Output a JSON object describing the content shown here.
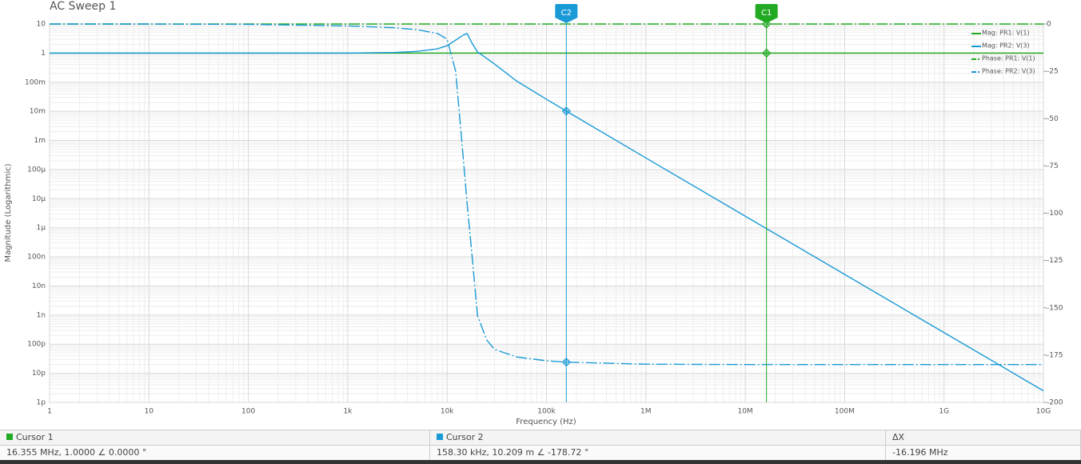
{
  "chart_data": {
    "type": "line",
    "title": "AC Sweep 1",
    "x_label": "Frequency (Hz)",
    "y_label": "Magnitude (Logarithmic)",
    "log_x": true,
    "log_y": true,
    "grid": true,
    "legend": "upper right",
    "xlim": [
      1,
      10000000000
    ],
    "xticks": [
      1,
      10,
      100,
      {
        "value": 1000,
        "label": "1k"
      },
      {
        "value": 10000,
        "label": "10k"
      },
      {
        "value": 100000,
        "label": "100k"
      },
      {
        "value": 1000000,
        "label": "1M"
      },
      {
        "value": 10000000,
        "label": "10M"
      },
      {
        "value": 100000000,
        "label": "100M"
      },
      {
        "value": 1000000000,
        "label": "1G"
      },
      {
        "value": 10000000000,
        "label": "10G"
      }
    ],
    "ylim": [
      1e-12,
      10
    ],
    "yticks": [
      {
        "value": 1e-12,
        "label": "1p"
      },
      {
        "value": 1e-11,
        "label": "10p"
      },
      {
        "value": 1e-10,
        "label": "100p"
      },
      {
        "value": 1e-09,
        "label": "1n"
      },
      {
        "value": 1e-08,
        "label": "10n"
      },
      {
        "value": 1e-07,
        "label": "100n"
      },
      {
        "value": 1e-06,
        "label": "1µ"
      },
      {
        "value": 1e-05,
        "label": "10µ"
      },
      {
        "value": 0.0001,
        "label": "100µ"
      },
      {
        "value": 0.001,
        "label": "1m"
      },
      {
        "value": 0.01,
        "label": "10m"
      },
      {
        "value": 0.1,
        "label": "100m"
      },
      1,
      10
    ],
    "y2lim": [
      -200,
      0
    ],
    "y2ticks": [
      0,
      -25,
      -50,
      -75,
      -100,
      -125,
      -150,
      -175,
      -200
    ],
    "x": [
      1,
      10,
      100,
      1000,
      3000,
      5000,
      8000,
      10000,
      12200,
      14600,
      15900,
      17800,
      20200,
      25000,
      30000,
      50000,
      100000,
      158300,
      1000000,
      10000000,
      100000000,
      1000000000,
      10000000000
    ],
    "series": [
      {
        "name": "Mag: PR1: V(1)",
        "color": "#22aa22",
        "values": [
          1,
          1,
          1,
          1,
          1,
          1,
          1,
          1,
          1,
          1,
          1,
          1,
          1,
          1,
          1,
          1,
          1,
          1,
          1,
          1,
          1,
          1,
          1
        ]
      },
      {
        "name": "Mag: PR2: V(3)",
        "color": "#1a9ad6",
        "values": [
          1,
          1,
          1,
          1,
          1.05,
          1.15,
          1.4,
          1.8,
          2.8,
          4.2,
          4.7,
          2.2,
          1.1,
          0.66,
          0.42,
          0.11,
          0.026,
          0.0102,
          0.00025,
          2.5e-06,
          2.5e-08,
          2.5e-10,
          2.5e-12
        ]
      },
      {
        "name": "Phase: PR1: V(1)",
        "color": "#22aa22",
        "axis": "y2",
        "dashed": true,
        "values": [
          0,
          0,
          0,
          0,
          0,
          0,
          0,
          0,
          0,
          0,
          0,
          0,
          0,
          0,
          0,
          0,
          0,
          0,
          0,
          0,
          0,
          0,
          0
        ]
      },
      {
        "name": "Phase: PR2: V(3)",
        "color": "#1a9ad6",
        "axis": "y2",
        "dashed": true,
        "values": [
          0,
          0,
          -0.2,
          -1,
          -2,
          -3,
          -5,
          -8,
          -25,
          -72,
          -95,
          -122,
          -154,
          -167,
          -172,
          -176,
          -178,
          -178.72,
          -179.8,
          -180,
          -180,
          -180,
          -180
        ]
      }
    ],
    "cursors": [
      {
        "name": "C1",
        "x": 16355000,
        "color": "#22aa22"
      },
      {
        "name": "C2",
        "x": 158300,
        "color": "#1a9ad6"
      }
    ]
  },
  "cursor_table": {
    "headers": [
      "Cursor 1",
      "Cursor 2",
      "ΔX"
    ],
    "values": [
      "16.355 MHz, 1.0000 ∠ 0.0000 °",
      "158.30 kHz, 10.209 m ∠ -178.72 °",
      "-16.196 MHz"
    ]
  }
}
